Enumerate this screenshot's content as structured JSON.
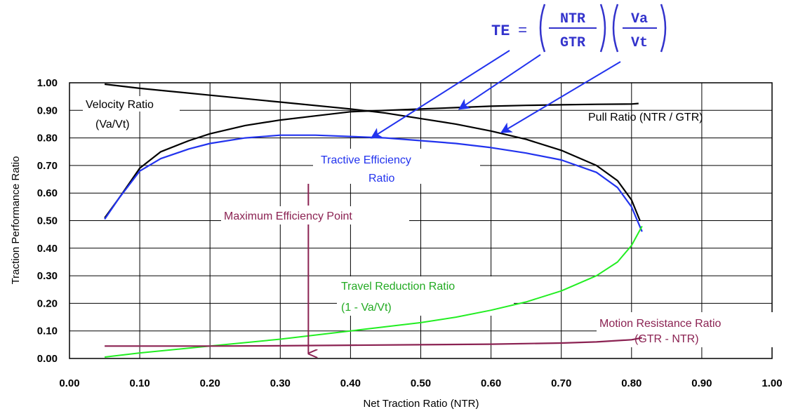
{
  "chart_data": {
    "type": "line",
    "xlabel": "Net Traction Ratio (NTR)",
    "ylabel": "Traction Performance Ratio",
    "xlim": [
      0,
      1
    ],
    "ylim": [
      0,
      1
    ],
    "x_ticks": [
      "0.00",
      "0.10",
      "0.20",
      "0.30",
      "0.40",
      "0.50",
      "0.60",
      "0.70",
      "0.80",
      "0.90",
      "1.00"
    ],
    "y_ticks": [
      "0.00",
      "0.10",
      "0.20",
      "0.30",
      "0.40",
      "0.50",
      "0.60",
      "0.70",
      "0.80",
      "0.90",
      "1.00"
    ],
    "grid": true,
    "formula": {
      "lhs": "TE",
      "eq": "=",
      "num1": "NTR",
      "den1": "GTR",
      "num2": "Va",
      "den2": "Vt"
    },
    "series": [
      {
        "key": "velocity",
        "color": "#000000",
        "points": [
          [
            0.05,
            0.995
          ],
          [
            0.1,
            0.98
          ],
          [
            0.2,
            0.955
          ],
          [
            0.3,
            0.93
          ],
          [
            0.4,
            0.905
          ],
          [
            0.45,
            0.89
          ],
          [
            0.5,
            0.87
          ],
          [
            0.55,
            0.85
          ],
          [
            0.6,
            0.825
          ],
          [
            0.65,
            0.795
          ],
          [
            0.7,
            0.755
          ],
          [
            0.75,
            0.7
          ],
          [
            0.78,
            0.645
          ],
          [
            0.8,
            0.575
          ],
          [
            0.812,
            0.5
          ]
        ]
      },
      {
        "key": "pull",
        "color": "#000000",
        "points": [
          [
            0.05,
            0.51
          ],
          [
            0.07,
            0.58
          ],
          [
            0.1,
            0.69
          ],
          [
            0.13,
            0.75
          ],
          [
            0.17,
            0.79
          ],
          [
            0.2,
            0.815
          ],
          [
            0.25,
            0.845
          ],
          [
            0.3,
            0.865
          ],
          [
            0.35,
            0.88
          ],
          [
            0.4,
            0.895
          ],
          [
            0.45,
            0.9
          ],
          [
            0.5,
            0.905
          ],
          [
            0.55,
            0.91
          ],
          [
            0.6,
            0.915
          ],
          [
            0.65,
            0.918
          ],
          [
            0.7,
            0.92
          ],
          [
            0.75,
            0.922
          ],
          [
            0.8,
            0.923
          ],
          [
            0.81,
            0.925
          ]
        ]
      },
      {
        "key": "tractive",
        "color": "#2233ee",
        "points": [
          [
            0.05,
            0.505
          ],
          [
            0.07,
            0.58
          ],
          [
            0.1,
            0.68
          ],
          [
            0.13,
            0.725
          ],
          [
            0.17,
            0.76
          ],
          [
            0.2,
            0.78
          ],
          [
            0.25,
            0.8
          ],
          [
            0.3,
            0.81
          ],
          [
            0.35,
            0.81
          ],
          [
            0.4,
            0.805
          ],
          [
            0.45,
            0.8
          ],
          [
            0.5,
            0.79
          ],
          [
            0.55,
            0.78
          ],
          [
            0.6,
            0.765
          ],
          [
            0.65,
            0.745
          ],
          [
            0.7,
            0.72
          ],
          [
            0.75,
            0.675
          ],
          [
            0.78,
            0.62
          ],
          [
            0.8,
            0.55
          ],
          [
            0.815,
            0.46
          ]
        ]
      },
      {
        "key": "travel",
        "color": "#22ee22",
        "points": [
          [
            0.05,
            0.005
          ],
          [
            0.1,
            0.02
          ],
          [
            0.2,
            0.045
          ],
          [
            0.3,
            0.07
          ],
          [
            0.4,
            0.1
          ],
          [
            0.45,
            0.115
          ],
          [
            0.5,
            0.13
          ],
          [
            0.55,
            0.15
          ],
          [
            0.6,
            0.175
          ],
          [
            0.65,
            0.205
          ],
          [
            0.7,
            0.245
          ],
          [
            0.75,
            0.3
          ],
          [
            0.78,
            0.35
          ],
          [
            0.8,
            0.41
          ],
          [
            0.815,
            0.48
          ]
        ]
      },
      {
        "key": "motion",
        "color": "#8b2252",
        "points": [
          [
            0.05,
            0.045
          ],
          [
            0.2,
            0.045
          ],
          [
            0.3,
            0.046
          ],
          [
            0.4,
            0.048
          ],
          [
            0.5,
            0.05
          ],
          [
            0.6,
            0.052
          ],
          [
            0.7,
            0.056
          ],
          [
            0.75,
            0.06
          ],
          [
            0.8,
            0.068
          ],
          [
            0.815,
            0.075
          ]
        ]
      }
    ],
    "annotations": {
      "velocity": {
        "line1": "Velocity Ratio",
        "line2": "(Va/Vt)",
        "color": "#000000"
      },
      "pull": {
        "line1": "Pull Ratio (NTR / GTR)",
        "color": "#000000"
      },
      "tractive": {
        "line1": "Tractive Efficiency",
        "line2": "Ratio",
        "color": "#2233ee"
      },
      "max_eff": {
        "line1": "Maximum Efficiency Point",
        "color": "#8b2252",
        "x": 0.34
      },
      "travel": {
        "line1": "Travel Reduction Ratio",
        "line2": "(1 - Va/Vt)",
        "color": "#22aa22"
      },
      "motion": {
        "line1": "Motion Resistance Ratio",
        "line2": "(GTR - NTR)",
        "color": "#8b2252"
      }
    }
  }
}
